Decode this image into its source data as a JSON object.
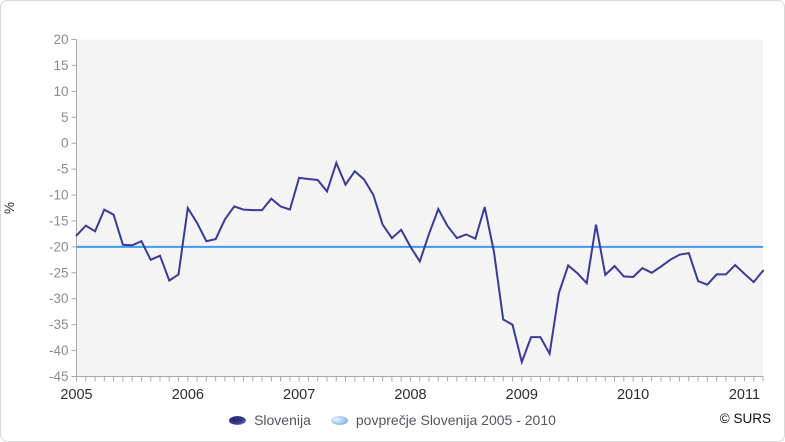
{
  "chart_data": {
    "type": "line",
    "title": "",
    "ylabel": "%",
    "ylim": [
      -45,
      20
    ],
    "ytick_step": 5,
    "ytick_labels": [
      "20",
      "15",
      "10",
      "5",
      "0",
      "-5",
      "-10",
      "-15",
      "-20",
      "-25",
      "-30",
      "-35",
      "-40",
      "-45"
    ],
    "xtick_year_labels": [
      "2005",
      "2006",
      "2007",
      "2008",
      "2009",
      "2010",
      "2011"
    ],
    "x_frequency": "monthly",
    "x_start": "2005-01",
    "x_end": "2011-03",
    "grid": false,
    "legend_position": "bottom",
    "series": [
      {
        "name": "Slovenija",
        "color": "#3a3a9b",
        "values": [
          -17.8,
          -15.9,
          -17.0,
          -12.8,
          -13.8,
          -19.6,
          -19.7,
          -18.9,
          -22.5,
          -21.7,
          -26.5,
          -25.3,
          -12.5,
          -15.4,
          -18.9,
          -18.5,
          -14.7,
          -12.2,
          -12.8,
          -12.9,
          -12.9,
          -10.7,
          -12.2,
          -12.8,
          -6.7,
          -6.9,
          -7.1,
          -9.3,
          -3.8,
          -8.0,
          -5.4,
          -7.0,
          -10.0,
          -15.7,
          -18.3,
          -16.7,
          -20.0,
          -22.8,
          -17.5,
          -12.7,
          -16.0,
          -18.3,
          -17.6,
          -18.4,
          -12.3,
          -21.0,
          -34.0,
          -35.0,
          -42.2,
          -37.4,
          -37.4,
          -40.6,
          -28.9,
          -23.6,
          -25.1,
          -27.0,
          -15.7,
          -25.4,
          -23.7,
          -25.7,
          -25.8,
          -24.1,
          -25.0,
          -23.8,
          -22.5,
          -21.5,
          -21.2,
          -26.6,
          -27.3,
          -25.3,
          -25.3,
          -23.5,
          -25.2,
          -26.8,
          -24.6
        ]
      },
      {
        "name": "povprečje Slovenija 2005 - 2010",
        "color": "#3d9bf5",
        "constant_value": -20
      }
    ]
  },
  "colors": {
    "plot_bg": "#f4f4f4",
    "axis": "#a9a9a9",
    "ytick_text": "#8c8c8c",
    "xtick_text": "#2e2e2e"
  },
  "credit": "© SURS"
}
